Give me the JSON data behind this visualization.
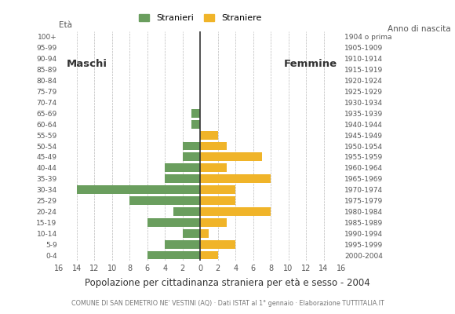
{
  "age_groups": [
    "0-4",
    "5-9",
    "10-14",
    "15-19",
    "20-24",
    "25-29",
    "30-34",
    "35-39",
    "40-44",
    "45-49",
    "50-54",
    "55-59",
    "60-64",
    "65-69",
    "70-74",
    "75-79",
    "80-84",
    "85-89",
    "90-94",
    "95-99",
    "100+"
  ],
  "birth_years": [
    "2000-2004",
    "1995-1999",
    "1990-1994",
    "1985-1989",
    "1980-1984",
    "1975-1979",
    "1970-1974",
    "1965-1969",
    "1960-1964",
    "1955-1959",
    "1950-1954",
    "1945-1949",
    "1940-1944",
    "1935-1939",
    "1930-1934",
    "1925-1929",
    "1920-1924",
    "1915-1919",
    "1910-1914",
    "1905-1909",
    "1904 o prima"
  ],
  "males": [
    6,
    4,
    2,
    6,
    3,
    8,
    14,
    4,
    4,
    2,
    2,
    0,
    1,
    1,
    0,
    0,
    0,
    0,
    0,
    0,
    0
  ],
  "females": [
    2,
    4,
    1,
    3,
    8,
    4,
    4,
    8,
    3,
    7,
    3,
    2,
    0,
    0,
    0,
    0,
    0,
    0,
    0,
    0,
    0
  ],
  "male_color": "#6a9e5e",
  "female_color": "#f0b429",
  "background_color": "#ffffff",
  "grid_color": "#bbbbbb",
  "title": "Popolazione per cittadinanza straniera per età e sesso - 2004",
  "subtitle": "COMUNE DI SAN DEMETRIO NE' VESTINI (AQ) · Dati ISTAT al 1° gennaio · Elaborazione TUTTITALIA.IT",
  "legend_male": "Stranieri",
  "legend_female": "Straniere",
  "label_eta": "Età",
  "label_anno": "Anno di nascita",
  "label_maschi": "Maschi",
  "label_femmine": "Femmine",
  "xlim": 16,
  "x_ticks": [
    0,
    2,
    4,
    6,
    8,
    10,
    12,
    14,
    16
  ]
}
